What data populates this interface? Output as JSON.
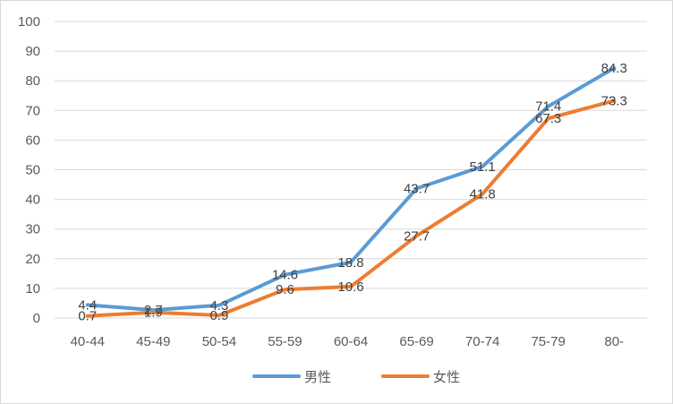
{
  "chart_data": {
    "type": "line",
    "title": "",
    "xlabel": "",
    "ylabel": "",
    "categories": [
      "40-44",
      "45-49",
      "50-54",
      "55-59",
      "60-64",
      "65-69",
      "70-74",
      "75-79",
      "80-"
    ],
    "ylim": [
      0,
      100
    ],
    "yticks": [
      "0",
      "10",
      "20",
      "30",
      "40",
      "50",
      "60",
      "70",
      "80",
      "90",
      "100"
    ],
    "grid": true,
    "legend": "bottom",
    "series": [
      {
        "name": "男性",
        "color": "#5b9bd5",
        "values": [
          4.4,
          2.7,
          4.3,
          14.6,
          18.8,
          43.7,
          51.1,
          71.4,
          84.3
        ]
      },
      {
        "name": "女性",
        "color": "#ed7d31",
        "values": [
          0.7,
          1.9,
          0.9,
          9.6,
          10.6,
          27.7,
          41.8,
          67.3,
          73.3
        ]
      }
    ]
  }
}
